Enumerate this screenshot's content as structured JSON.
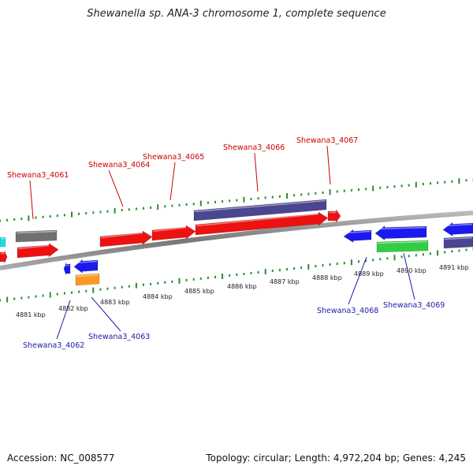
{
  "title": "Shewanella sp. ANA-3 chromosome 1, complete sequence",
  "footer": {
    "accession": "Accession: NC_008577",
    "summary": "Topology: circular; Length: 4,972,204 bp; Genes: 4,245"
  },
  "colors": {
    "backbone": "#8a8a8a",
    "tick": "#2e8b2e",
    "label_top": "#cc0000",
    "label_bottom": "#1a1aaa",
    "gene_red": "#ee1111",
    "gene_blue": "#1a1aee",
    "gene_navy": "#4a4690",
    "gene_gray": "#707070",
    "gene_cyan": "#22dddd",
    "gene_orange": "#ff9922",
    "gene_green": "#33cc44"
  },
  "scale_labels": [
    "4881 kbp",
    "4882 kbp",
    "4883 kbp",
    "4884 kbp",
    "4885 kbp",
    "4886 kbp",
    "4887 kbp",
    "4888 kbp",
    "4889 kbp",
    "4890 kbp",
    "4891 kbp"
  ],
  "gene_labels_top": [
    "Shewana3_4061",
    "Shewana3_4064",
    "Shewana3_4065",
    "Shewana3_4066",
    "Shewana3_4067"
  ],
  "gene_labels_bottom": [
    "Shewana3_4062",
    "Shewana3_4063",
    "Shewana3_4068",
    "Shewana3_4069"
  ]
}
